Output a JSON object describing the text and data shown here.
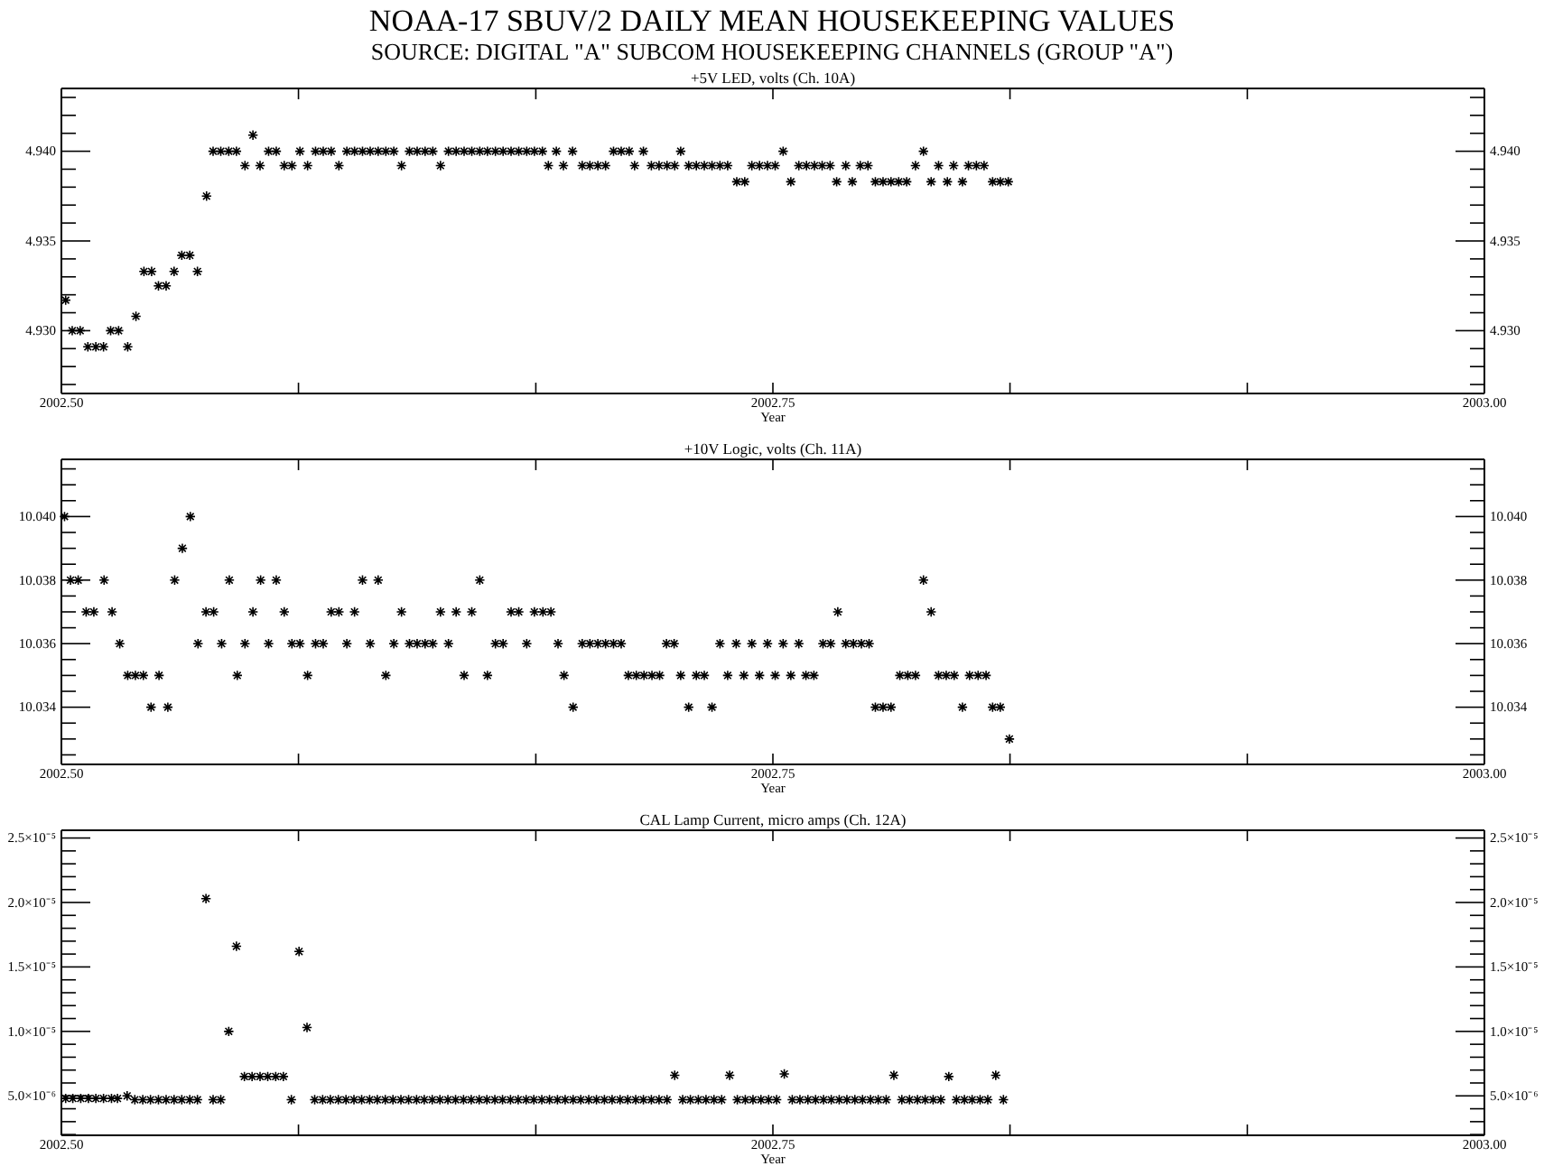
{
  "chart_data": [
    {
      "type": "scatter",
      "title": "+5V LED, volts (Ch. 10A)",
      "xlabel": "Year",
      "annotations": [
        "NOAA-17 SBUV/2 DAILY MEAN HOUSEKEEPING VALUES",
        "SOURCE: DIGITAL \"A\" SUBCOM HOUSEKEEPING CHANNELS (GROUP \"A\")"
      ],
      "marker": "cross",
      "xlim": [
        2002.5,
        2003.0
      ],
      "xticks": [
        {
          "value": 2002.5,
          "label": "2002.50"
        },
        {
          "value": 2002.5833,
          "label": null
        },
        {
          "value": 2002.6667,
          "label": null
        },
        {
          "value": 2002.75,
          "label": "2002.75"
        },
        {
          "value": 2002.8333,
          "label": null
        },
        {
          "value": 2002.9167,
          "label": null
        },
        {
          "value": 2003.0,
          "label": "2003.00"
        }
      ],
      "ylim": [
        4.9265,
        4.9435
      ],
      "yticks": [
        {
          "value": 4.927,
          "label": null
        },
        {
          "value": 4.928,
          "label": null
        },
        {
          "value": 4.929,
          "label": null
        },
        {
          "value": 4.93,
          "label": "4.930"
        },
        {
          "value": 4.931,
          "label": null
        },
        {
          "value": 4.932,
          "label": null
        },
        {
          "value": 4.933,
          "label": null
        },
        {
          "value": 4.934,
          "label": null
        },
        {
          "value": 4.935,
          "label": "4.935"
        },
        {
          "value": 4.936,
          "label": null
        },
        {
          "value": 4.937,
          "label": null
        },
        {
          "value": 4.938,
          "label": null
        },
        {
          "value": 4.939,
          "label": null
        },
        {
          "value": 4.94,
          "label": "4.940"
        },
        {
          "value": 4.941,
          "label": null
        },
        {
          "value": 4.942,
          "label": null
        },
        {
          "value": 4.943,
          "label": null
        }
      ],
      "y2lim": [
        4.9265,
        4.9435
      ],
      "y2ticks": [
        {
          "value": 4.927,
          "label": null
        },
        {
          "value": 4.928,
          "label": null
        },
        {
          "value": 4.929,
          "label": null
        },
        {
          "value": 4.93,
          "label": "4.930"
        },
        {
          "value": 4.931,
          "label": null
        },
        {
          "value": 4.932,
          "label": null
        },
        {
          "value": 4.933,
          "label": null
        },
        {
          "value": 4.934,
          "label": null
        },
        {
          "value": 4.935,
          "label": "4.935"
        },
        {
          "value": 4.936,
          "label": null
        },
        {
          "value": 4.937,
          "label": null
        },
        {
          "value": 4.938,
          "label": null
        },
        {
          "value": 4.939,
          "label": null
        },
        {
          "value": 4.94,
          "label": "4.940"
        },
        {
          "value": 4.941,
          "label": null
        },
        {
          "value": 4.942,
          "label": null
        },
        {
          "value": 4.943,
          "label": null
        }
      ],
      "series": [
        {
          "color": "#000000",
          "x": [
            2002.5015,
            2002.5038,
            2002.5066,
            2002.5093,
            2002.5121,
            2002.5148,
            2002.5173,
            2002.5201,
            2002.5233,
            2002.5262,
            2002.529,
            2002.5317,
            2002.5341,
            2002.5368,
            2002.5396,
            2002.5423,
            2002.5451,
            2002.5478,
            2002.551,
            2002.5533,
            2002.556,
            2002.5588,
            2002.5615,
            2002.5645,
            2002.5673,
            2002.5698,
            2002.5728,
            2002.5755,
            2002.5783,
            2002.581,
            2002.5838,
            2002.5865,
            2002.5893,
            2002.592,
            2002.5948,
            2002.5975,
            2002.6003,
            2002.603,
            2002.6058,
            2002.6085,
            2002.6113,
            2002.614,
            2002.6168,
            2002.6195,
            2002.6223,
            2002.625,
            2002.6278,
            2002.6305,
            2002.6332,
            2002.636,
            2002.6387,
            2002.6415,
            2002.6442,
            2002.647,
            2002.6497,
            2002.6525,
            2002.6552,
            2002.658,
            2002.6607,
            2002.6635,
            2002.6662,
            2002.669,
            2002.6711,
            2002.6739,
            2002.6764,
            2002.6796,
            2002.683,
            2002.6857,
            2002.6885,
            2002.6912,
            2002.694,
            2002.6967,
            2002.6995,
            2002.7014,
            2002.7045,
            2002.7073,
            2002.71,
            2002.7128,
            2002.7155,
            2002.7176,
            2002.7204,
            2002.7231,
            2002.7259,
            2002.7286,
            2002.7314,
            2002.7341,
            2002.7373,
            2002.7401,
            2002.7426,
            2002.7453,
            2002.7481,
            2002.7508,
            2002.7536,
            2002.7563,
            2002.7591,
            2002.7618,
            2002.7646,
            2002.7673,
            2002.7701,
            2002.7724,
            2002.7756,
            2002.7779,
            2002.7807,
            2002.7834,
            2002.786,
            2002.7887,
            2002.7915,
            2002.7942,
            2002.797,
            2002.8001,
            2002.8029,
            2002.8056,
            2002.8082,
            2002.8113,
            2002.8135,
            2002.8166,
            2002.8187,
            2002.8215,
            2002.8242,
            2002.8272,
            2002.8299,
            2002.8327
          ],
          "values": [
            4.9317,
            4.93,
            4.93,
            4.9291,
            4.9291,
            4.9291,
            4.93,
            4.93,
            4.9291,
            4.9308,
            4.9333,
            4.9333,
            4.9325,
            4.9325,
            4.9333,
            4.9342,
            4.9342,
            4.9333,
            4.9375,
            4.94,
            4.94,
            4.94,
            4.94,
            4.9392,
            4.9409,
            4.9392,
            4.94,
            4.94,
            4.9392,
            4.9392,
            4.94,
            4.9392,
            4.94,
            4.94,
            4.94,
            4.9392,
            4.94,
            4.94,
            4.94,
            4.94,
            4.94,
            4.94,
            4.94,
            4.9392,
            4.94,
            4.94,
            4.94,
            4.94,
            4.9392,
            4.94,
            4.94,
            4.94,
            4.94,
            4.94,
            4.94,
            4.94,
            4.94,
            4.94,
            4.94,
            4.94,
            4.94,
            4.94,
            4.9392,
            4.94,
            4.9392,
            4.94,
            4.9392,
            4.9392,
            4.9392,
            4.9392,
            4.94,
            4.94,
            4.94,
            4.9392,
            4.94,
            4.9392,
            4.9392,
            4.9392,
            4.9392,
            4.94,
            4.9392,
            4.9392,
            4.9392,
            4.9392,
            4.9392,
            4.9392,
            4.9383,
            4.9383,
            4.9392,
            4.9392,
            4.9392,
            4.9392,
            4.94,
            4.9383,
            4.9392,
            4.9392,
            4.9392,
            4.9392,
            4.9392,
            4.9383,
            4.9392,
            4.9383,
            4.9392,
            4.9392,
            4.9383,
            4.9383,
            4.9383,
            4.9383,
            4.9383,
            4.9392,
            4.94,
            4.9383,
            4.9392,
            4.9383,
            4.9392,
            4.9383,
            4.9392,
            4.9392,
            4.9392,
            4.9383,
            4.9383,
            4.9383
          ]
        }
      ]
    },
    {
      "type": "scatter",
      "title": "+10V Logic, volts (Ch. 11A)",
      "xlabel": "Year",
      "marker": "cross",
      "xlim": [
        2002.5,
        2003.0
      ],
      "xticks": [
        {
          "value": 2002.5,
          "label": "2002.50"
        },
        {
          "value": 2002.5833,
          "label": null
        },
        {
          "value": 2002.6667,
          "label": null
        },
        {
          "value": 2002.75,
          "label": "2002.75"
        },
        {
          "value": 2002.8333,
          "label": null
        },
        {
          "value": 2002.9167,
          "label": null
        },
        {
          "value": 2003.0,
          "label": "2003.00"
        }
      ],
      "ylim": [
        10.0322,
        10.0418
      ],
      "yticks": [
        {
          "value": 10.0325,
          "label": null
        },
        {
          "value": 10.033,
          "label": null
        },
        {
          "value": 10.0335,
          "label": null
        },
        {
          "value": 10.034,
          "label": "10.034"
        },
        {
          "value": 10.0345,
          "label": null
        },
        {
          "value": 10.035,
          "label": null
        },
        {
          "value": 10.0355,
          "label": null
        },
        {
          "value": 10.036,
          "label": "10.036"
        },
        {
          "value": 10.0365,
          "label": null
        },
        {
          "value": 10.037,
          "label": null
        },
        {
          "value": 10.0375,
          "label": null
        },
        {
          "value": 10.038,
          "label": "10.038"
        },
        {
          "value": 10.0385,
          "label": null
        },
        {
          "value": 10.039,
          "label": null
        },
        {
          "value": 10.0395,
          "label": null
        },
        {
          "value": 10.04,
          "label": "10.040"
        },
        {
          "value": 10.0405,
          "label": null
        },
        {
          "value": 10.041,
          "label": null
        },
        {
          "value": 10.0415,
          "label": null
        }
      ],
      "y2lim": [
        10.0322,
        10.0418
      ],
      "y2ticks": [
        {
          "value": 10.0325,
          "label": null
        },
        {
          "value": 10.033,
          "label": null
        },
        {
          "value": 10.0335,
          "label": null
        },
        {
          "value": 10.034,
          "label": "10.034"
        },
        {
          "value": 10.0345,
          "label": null
        },
        {
          "value": 10.035,
          "label": null
        },
        {
          "value": 10.0355,
          "label": null
        },
        {
          "value": 10.036,
          "label": "10.036"
        },
        {
          "value": 10.0365,
          "label": null
        },
        {
          "value": 10.037,
          "label": null
        },
        {
          "value": 10.0375,
          "label": null
        },
        {
          "value": 10.038,
          "label": "10.038"
        },
        {
          "value": 10.0385,
          "label": null
        },
        {
          "value": 10.039,
          "label": null
        },
        {
          "value": 10.0395,
          "label": null
        },
        {
          "value": 10.04,
          "label": "10.040"
        },
        {
          "value": 10.0405,
          "label": null
        },
        {
          "value": 10.041,
          "label": null
        },
        {
          "value": 10.0415,
          "label": null
        }
      ],
      "series": [
        {
          "color": "#000000",
          "x": [
            2002.5011,
            2002.5032,
            2002.5059,
            2002.5087,
            2002.5114,
            2002.515,
            2002.5178,
            2002.5205,
            2002.5233,
            2002.526,
            2002.5288,
            2002.5315,
            2002.5343,
            2002.5374,
            2002.5398,
            2002.5425,
            2002.5453,
            2002.548,
            2002.5508,
            2002.5535,
            2002.5563,
            2002.559,
            2002.5618,
            2002.5645,
            2002.5673,
            2002.57,
            2002.5728,
            2002.5755,
            2002.5783,
            2002.581,
            2002.5838,
            2002.5865,
            2002.5893,
            2002.592,
            2002.5948,
            2002.5975,
            2002.6003,
            2002.603,
            2002.6058,
            2002.6085,
            2002.6113,
            2002.614,
            2002.6168,
            2002.6195,
            2002.6223,
            2002.625,
            2002.6278,
            2002.6305,
            2002.6332,
            2002.636,
            2002.6387,
            2002.6415,
            2002.6442,
            2002.647,
            2002.6497,
            2002.6525,
            2002.6552,
            2002.658,
            2002.6607,
            2002.6635,
            2002.6662,
            2002.6692,
            2002.672,
            2002.6745,
            2002.6766,
            2002.6798,
            2002.683,
            2002.6857,
            2002.6885,
            2002.6912,
            2002.694,
            2002.6967,
            2002.6992,
            2002.702,
            2002.7047,
            2002.7075,
            2002.7102,
            2002.7126,
            2002.7153,
            2002.7176,
            2002.7204,
            2002.7231,
            2002.7259,
            2002.7286,
            2002.7314,
            2002.7341,
            2002.7371,
            2002.7398,
            2002.7426,
            2002.7453,
            2002.7481,
            2002.7508,
            2002.7536,
            2002.7563,
            2002.7591,
            2002.7616,
            2002.7644,
            2002.7676,
            2002.7703,
            2002.7728,
            2002.7756,
            2002.7783,
            2002.7811,
            2002.7838,
            2002.786,
            2002.7887,
            2002.7915,
            2002.7946,
            2002.7974,
            2002.8001,
            2002.8029,
            2002.8056,
            2002.8082,
            2002.8109,
            2002.8137,
            2002.8166,
            2002.8191,
            2002.8221,
            2002.8249,
            2002.8272,
            2002.8299,
            2002.8331
          ],
          "values": [
            10.04,
            10.038,
            10.038,
            10.037,
            10.037,
            10.038,
            10.037,
            10.036,
            10.035,
            10.035,
            10.035,
            10.034,
            10.035,
            10.034,
            10.038,
            10.039,
            10.04,
            10.036,
            10.037,
            10.037,
            10.036,
            10.038,
            10.035,
            10.036,
            10.037,
            10.038,
            10.036,
            10.038,
            10.037,
            10.036,
            10.036,
            10.035,
            10.036,
            10.036,
            10.037,
            10.037,
            10.036,
            10.037,
            10.038,
            10.036,
            10.038,
            10.035,
            10.036,
            10.037,
            10.036,
            10.036,
            10.036,
            10.036,
            10.037,
            10.036,
            10.037,
            10.035,
            10.037,
            10.038,
            10.035,
            10.036,
            10.036,
            10.037,
            10.037,
            10.036,
            10.037,
            10.037,
            10.037,
            10.036,
            10.035,
            10.034,
            10.036,
            10.036,
            10.036,
            10.036,
            10.036,
            10.036,
            10.035,
            10.035,
            10.035,
            10.035,
            10.035,
            10.036,
            10.036,
            10.035,
            10.034,
            10.035,
            10.035,
            10.034,
            10.036,
            10.035,
            10.036,
            10.035,
            10.036,
            10.035,
            10.036,
            10.035,
            10.036,
            10.035,
            10.036,
            10.035,
            10.035,
            10.036,
            10.036,
            10.037,
            10.036,
            10.036,
            10.036,
            10.036,
            10.034,
            10.034,
            10.034,
            10.035,
            10.035,
            10.035,
            10.038,
            10.037,
            10.035,
            10.035,
            10.035,
            10.034,
            10.035,
            10.035,
            10.035,
            10.034,
            10.034,
            10.033
          ]
        }
      ]
    },
    {
      "type": "scatter",
      "title": "CAL Lamp Current, micro amps (Ch. 12A)",
      "xlabel": "Year",
      "marker": "cross",
      "xlim": [
        2002.5,
        2003.0
      ],
      "xticks": [
        {
          "value": 2002.5,
          "label": "2002.50"
        },
        {
          "value": 2002.5833,
          "label": null
        },
        {
          "value": 2002.6667,
          "label": null
        },
        {
          "value": 2002.75,
          "label": "2002.75"
        },
        {
          "value": 2002.8333,
          "label": null
        },
        {
          "value": 2002.9167,
          "label": null
        },
        {
          "value": 2003.0,
          "label": "2003.00"
        }
      ],
      "ylim": [
        1.94e-06,
        2.56e-05
      ],
      "yticks": [
        {
          "value": 2e-06,
          "label": null
        },
        {
          "value": 3e-06,
          "label": null
        },
        {
          "value": 4e-06,
          "label": null
        },
        {
          "value": 5e-06,
          "label": "5.0×10⁻⁶"
        },
        {
          "value": 6e-06,
          "label": null
        },
        {
          "value": 7e-06,
          "label": null
        },
        {
          "value": 8e-06,
          "label": null
        },
        {
          "value": 9e-06,
          "label": null
        },
        {
          "value": 1e-05,
          "label": "1.0×10⁻⁵"
        },
        {
          "value": 1.1e-05,
          "label": null
        },
        {
          "value": 1.2e-05,
          "label": null
        },
        {
          "value": 1.3e-05,
          "label": null
        },
        {
          "value": 1.4e-05,
          "label": null
        },
        {
          "value": 1.5e-05,
          "label": "1.5×10⁻⁵"
        },
        {
          "value": 1.6e-05,
          "label": null
        },
        {
          "value": 1.7e-05,
          "label": null
        },
        {
          "value": 1.8e-05,
          "label": null
        },
        {
          "value": 1.9e-05,
          "label": null
        },
        {
          "value": 2e-05,
          "label": "2.0×10⁻⁵"
        },
        {
          "value": 2.1e-05,
          "label": null
        },
        {
          "value": 2.2e-05,
          "label": null
        },
        {
          "value": 2.3e-05,
          "label": null
        },
        {
          "value": 2.4e-05,
          "label": null
        },
        {
          "value": 2.5e-05,
          "label": "2.5×10⁻⁵"
        }
      ],
      "y2lim": [
        1.94e-06,
        2.56e-05
      ],
      "y2ticks": [
        {
          "value": 2e-06,
          "label": null
        },
        {
          "value": 3e-06,
          "label": null
        },
        {
          "value": 4e-06,
          "label": null
        },
        {
          "value": 5e-06,
          "label": "5.0×10⁻⁶"
        },
        {
          "value": 6e-06,
          "label": null
        },
        {
          "value": 7e-06,
          "label": null
        },
        {
          "value": 8e-06,
          "label": null
        },
        {
          "value": 9e-06,
          "label": null
        },
        {
          "value": 1e-05,
          "label": "1.0×10⁻⁵"
        },
        {
          "value": 1.1e-05,
          "label": null
        },
        {
          "value": 1.2e-05,
          "label": null
        },
        {
          "value": 1.3e-05,
          "label": null
        },
        {
          "value": 1.4e-05,
          "label": null
        },
        {
          "value": 1.5e-05,
          "label": "1.5×10⁻⁵"
        },
        {
          "value": 1.6e-05,
          "label": null
        },
        {
          "value": 1.7e-05,
          "label": null
        },
        {
          "value": 1.8e-05,
          "label": null
        },
        {
          "value": 1.9e-05,
          "label": null
        },
        {
          "value": 2e-05,
          "label": "2.0×10⁻⁵"
        },
        {
          "value": 2.1e-05,
          "label": null
        },
        {
          "value": 2.2e-05,
          "label": null
        },
        {
          "value": 2.3e-05,
          "label": null
        },
        {
          "value": 2.4e-05,
          "label": null
        },
        {
          "value": 2.5e-05,
          "label": "2.5×10⁻⁵"
        }
      ],
      "series": [
        {
          "color": "#000000",
          "x": [
            2002.5015,
            2002.504,
            2002.5068,
            2002.5095,
            2002.5121,
            2002.5148,
            2002.5176,
            2002.5197,
            2002.5231,
            2002.5258,
            2002.5286,
            2002.5313,
            2002.5341,
            2002.5368,
            2002.5396,
            2002.5423,
            2002.5451,
            2002.5478,
            2002.5508,
            2002.5533,
            2002.556,
            2002.5588,
            2002.5615,
            2002.5643,
            2002.567,
            2002.5698,
            2002.5725,
            2002.5753,
            2002.578,
            2002.5808,
            2002.5835,
            2002.5863,
            2002.589,
            2002.5918,
            2002.5945,
            2002.5973,
            2002.6,
            2002.6028,
            2002.6055,
            2002.6083,
            2002.611,
            2002.6138,
            2002.6165,
            2002.6193,
            2002.622,
            2002.6248,
            2002.6275,
            2002.6303,
            2002.633,
            2002.6358,
            2002.6385,
            2002.6413,
            2002.644,
            2002.6468,
            2002.6495,
            2002.6523,
            2002.655,
            2002.6578,
            2002.6605,
            2002.6633,
            2002.666,
            2002.6688,
            2002.6715,
            2002.6743,
            2002.677,
            2002.6798,
            2002.6825,
            2002.6853,
            2002.688,
            2002.6908,
            2002.6935,
            2002.6963,
            2002.699,
            2002.7018,
            2002.7045,
            2002.7073,
            2002.71,
            2002.7128,
            2002.7155,
            2002.7183,
            2002.721,
            2002.7238,
            2002.7265,
            2002.7293,
            2002.732,
            2002.7348,
            2002.7375,
            2002.7403,
            2002.743,
            2002.7458,
            2002.7485,
            2002.7513,
            2002.754,
            2002.7568,
            2002.7595,
            2002.7623,
            2002.765,
            2002.7678,
            2002.7705,
            2002.7733,
            2002.776,
            2002.7788,
            2002.7815,
            2002.7843,
            2002.787,
            2002.7898,
            2002.7925,
            2002.7953,
            2002.798,
            2002.8008,
            2002.8035,
            2002.8063,
            2002.809,
            2002.8118,
            2002.8145,
            2002.8173,
            2002.82,
            2002.8228,
            2002.8255,
            2002.8283,
            2002.831
          ],
          "values": [
            4.8e-06,
            4.8e-06,
            4.8e-06,
            4.8e-06,
            4.8e-06,
            4.8e-06,
            4.8e-06,
            4.8e-06,
            5e-06,
            4.7e-06,
            4.7e-06,
            4.7e-06,
            4.7e-06,
            4.7e-06,
            4.7e-06,
            4.7e-06,
            4.7e-06,
            4.7e-06,
            2.03e-05,
            4.7e-06,
            4.7e-06,
            1e-05,
            1.66e-05,
            6.5e-06,
            6.5e-06,
            6.5e-06,
            6.5e-06,
            6.5e-06,
            6.5e-06,
            4.7e-06,
            1.62e-05,
            1.03e-05,
            4.7e-06,
            4.7e-06,
            4.7e-06,
            4.7e-06,
            4.7e-06,
            4.7e-06,
            4.7e-06,
            4.7e-06,
            4.7e-06,
            4.7e-06,
            4.7e-06,
            4.7e-06,
            4.7e-06,
            4.7e-06,
            4.7e-06,
            4.7e-06,
            4.7e-06,
            4.7e-06,
            4.7e-06,
            4.7e-06,
            4.7e-06,
            4.7e-06,
            4.7e-06,
            4.7e-06,
            4.7e-06,
            4.7e-06,
            4.7e-06,
            4.7e-06,
            4.7e-06,
            4.7e-06,
            4.7e-06,
            4.7e-06,
            4.7e-06,
            4.7e-06,
            4.7e-06,
            4.7e-06,
            4.7e-06,
            4.7e-06,
            4.7e-06,
            4.7e-06,
            4.7e-06,
            4.7e-06,
            4.7e-06,
            4.7e-06,
            4.7e-06,
            4.7e-06,
            6.6e-06,
            4.7e-06,
            4.7e-06,
            4.7e-06,
            4.7e-06,
            4.7e-06,
            4.7e-06,
            6.6e-06,
            4.7e-06,
            4.7e-06,
            4.7e-06,
            4.7e-06,
            4.7e-06,
            4.7e-06,
            6.7e-06,
            4.7e-06,
            4.7e-06,
            4.7e-06,
            4.7e-06,
            4.7e-06,
            4.7e-06,
            4.7e-06,
            4.7e-06,
            4.7e-06,
            4.7e-06,
            4.7e-06,
            4.7e-06,
            4.7e-06,
            6.6e-06,
            4.7e-06,
            4.7e-06,
            4.7e-06,
            4.7e-06,
            4.7e-06,
            4.7e-06,
            6.5e-06,
            4.7e-06,
            4.7e-06,
            4.7e-06,
            4.7e-06,
            4.7e-06,
            6.6e-06,
            4.7e-06
          ]
        }
      ]
    }
  ]
}
